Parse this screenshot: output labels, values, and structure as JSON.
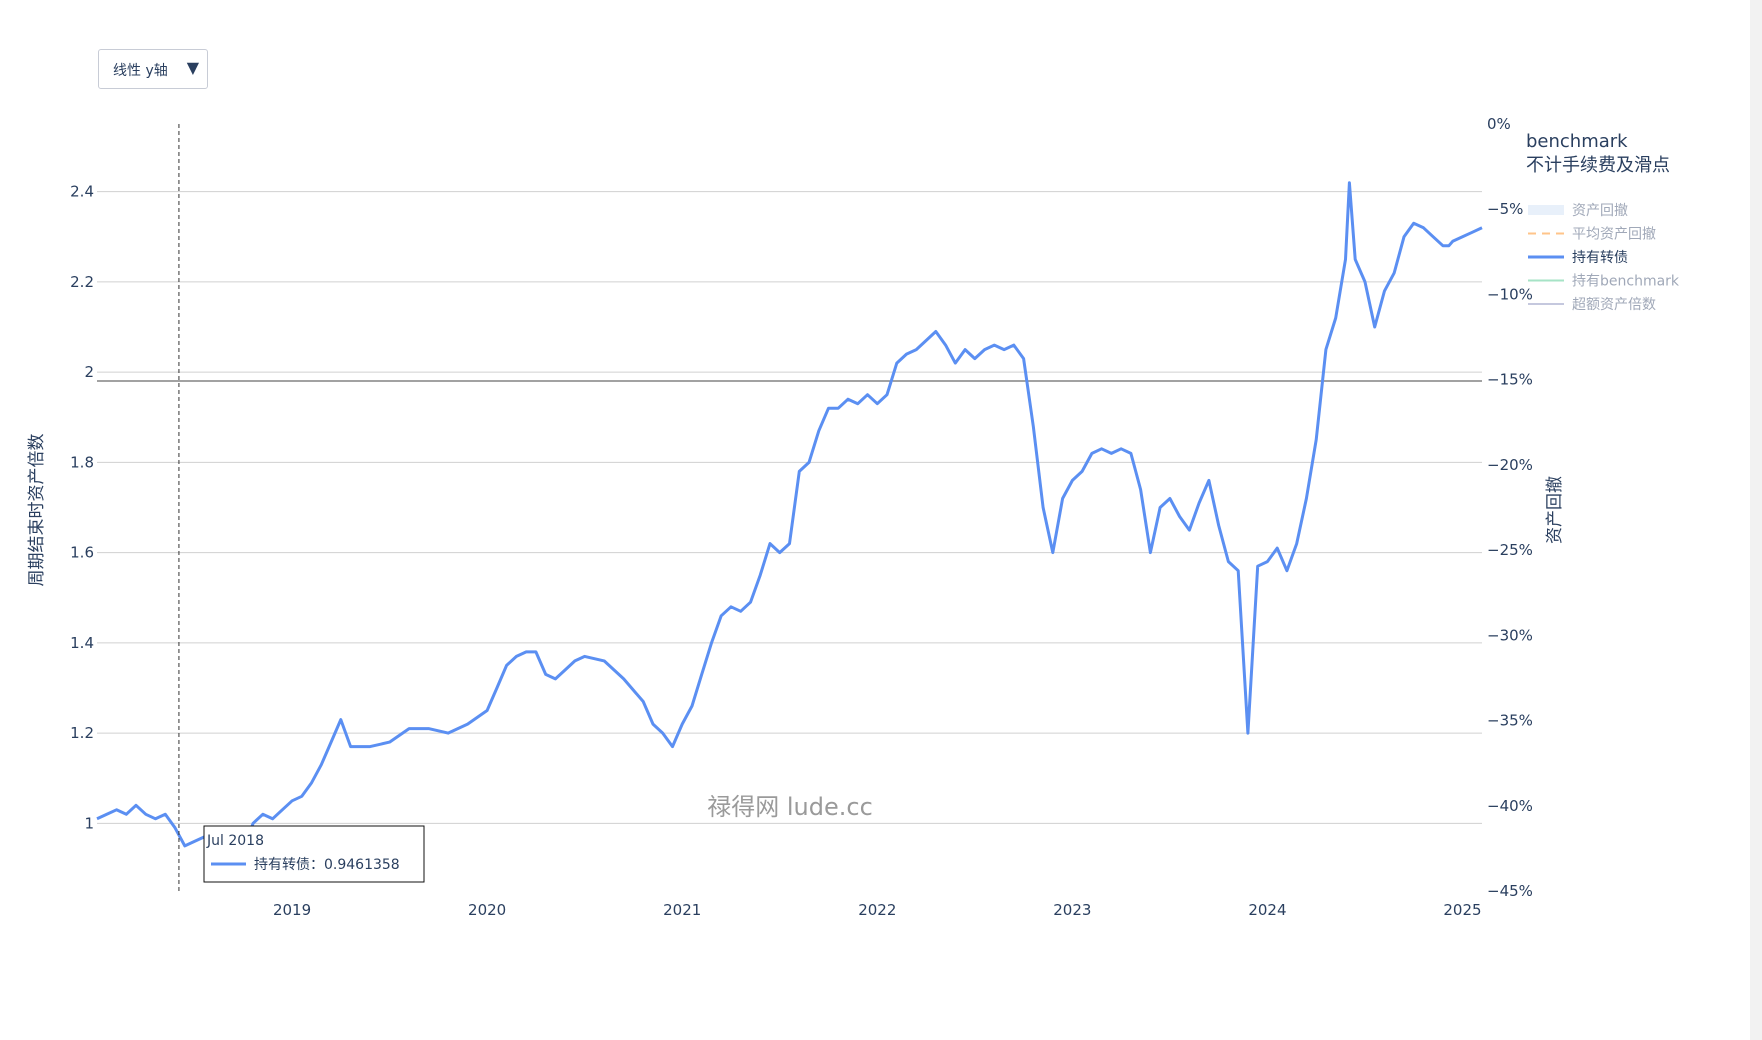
{
  "dropdown": {
    "label": "线性 y轴",
    "arrow": "▼",
    "icon": "dropdown-arrow-icon"
  },
  "watermark": "禄得网 lude.cc",
  "legend": {
    "title_line1": "benchmark",
    "title_line2": "不计手续费及滑点",
    "items": [
      {
        "label": "资产回撤",
        "color": "#e8f0fa",
        "style": "area",
        "active": false
      },
      {
        "label": "平均资产回撤",
        "color": "#ffc48a",
        "style": "dash",
        "active": false
      },
      {
        "label": "持有转债",
        "color": "#5b8ff2",
        "style": "line",
        "active": true
      },
      {
        "label": "持有benchmark",
        "color": "#a6e3c6",
        "style": "line",
        "active": false
      },
      {
        "label": "超额资产倍数",
        "color": "#c5c8de",
        "style": "line",
        "active": false
      }
    ]
  },
  "hover": {
    "date": "Jul 2018",
    "series": "持有转债",
    "value": "0.9461358"
  },
  "chart_data": {
    "type": "line",
    "title": "",
    "xlabel": "",
    "ylabel": "周期结束时资产倍数",
    "y2label": "资产回撤",
    "ylim": [
      0.85,
      2.55
    ],
    "y2lim": [
      -45,
      0
    ],
    "yticks": [
      1,
      1.2,
      1.4,
      1.6,
      1.8,
      2,
      2.2,
      2.4
    ],
    "ytick_labels": [
      "1",
      "1.2",
      "1.4",
      "1.6",
      "1.8",
      "2",
      "2.2",
      "2.4"
    ],
    "y2ticks": [
      0,
      -5,
      -10,
      -15,
      -20,
      -25,
      -30,
      -35,
      -40,
      -45
    ],
    "y2tick_labels": [
      "0%",
      "−5%",
      "−10%",
      "−15%",
      "−20%",
      "−25%",
      "−30%",
      "−35%",
      "−40%",
      "−45%"
    ],
    "xlim": [
      2018.0,
      2025.1
    ],
    "xticks": [
      2019,
      2020,
      2021,
      2022,
      2023,
      2024,
      2025
    ],
    "xtick_labels": [
      "2019",
      "2020",
      "2021",
      "2022",
      "2023",
      "2024",
      "2025"
    ],
    "hover_x": 2018.42,
    "series": [
      {
        "name": "持有转债",
        "color": "#5b8ff2",
        "x": [
          2018.0,
          2018.05,
          2018.1,
          2018.15,
          2018.2,
          2018.25,
          2018.3,
          2018.35,
          2018.4,
          2018.45,
          2018.5,
          2018.55,
          2018.6,
          2018.65,
          2018.7,
          2018.75,
          2018.8,
          2018.85,
          2018.9,
          2018.95,
          2019.0,
          2019.05,
          2019.1,
          2019.15,
          2019.2,
          2019.25,
          2019.3,
          2019.4,
          2019.5,
          2019.6,
          2019.7,
          2019.8,
          2019.9,
          2020.0,
          2020.05,
          2020.1,
          2020.15,
          2020.2,
          2020.25,
          2020.3,
          2020.35,
          2020.4,
          2020.45,
          2020.5,
          2020.6,
          2020.7,
          2020.8,
          2020.85,
          2020.9,
          2020.95,
          2021.0,
          2021.05,
          2021.1,
          2021.15,
          2021.2,
          2021.25,
          2021.3,
          2021.35,
          2021.4,
          2021.45,
          2021.5,
          2021.55,
          2021.6,
          2021.65,
          2021.7,
          2021.75,
          2021.8,
          2021.85,
          2021.9,
          2021.95,
          2022.0,
          2022.05,
          2022.1,
          2022.15,
          2022.2,
          2022.25,
          2022.3,
          2022.35,
          2022.4,
          2022.45,
          2022.5,
          2022.55,
          2022.6,
          2022.65,
          2022.7,
          2022.75,
          2022.8,
          2022.85,
          2022.9,
          2022.95,
          2023.0,
          2023.05,
          2023.1,
          2023.15,
          2023.2,
          2023.25,
          2023.3,
          2023.35,
          2023.4,
          2023.45,
          2023.5,
          2023.55,
          2023.6,
          2023.65,
          2023.7,
          2023.75,
          2023.8,
          2023.85,
          2023.9,
          2023.95,
          2024.0,
          2024.05,
          2024.1,
          2024.15,
          2024.2,
          2024.25,
          2024.3,
          2024.35,
          2024.4,
          2024.42,
          2024.45,
          2024.5,
          2024.55,
          2024.6,
          2024.65,
          2024.7,
          2024.75,
          2024.8,
          2024.85,
          2024.9,
          2024.93,
          2024.95,
          2025.0,
          2025.05,
          2025.1
        ],
        "y": [
          1.01,
          1.02,
          1.03,
          1.02,
          1.04,
          1.02,
          1.01,
          1.02,
          0.99,
          0.95,
          0.96,
          0.97,
          0.98,
          0.97,
          0.96,
          0.94,
          1.0,
          1.02,
          1.01,
          1.03,
          1.05,
          1.06,
          1.09,
          1.13,
          1.18,
          1.23,
          1.17,
          1.17,
          1.18,
          1.21,
          1.21,
          1.2,
          1.22,
          1.25,
          1.3,
          1.35,
          1.37,
          1.38,
          1.38,
          1.33,
          1.32,
          1.34,
          1.36,
          1.37,
          1.36,
          1.32,
          1.27,
          1.22,
          1.2,
          1.17,
          1.22,
          1.26,
          1.33,
          1.4,
          1.46,
          1.48,
          1.47,
          1.49,
          1.55,
          1.62,
          1.6,
          1.62,
          1.78,
          1.8,
          1.87,
          1.92,
          1.92,
          1.94,
          1.93,
          1.95,
          1.93,
          1.95,
          2.02,
          2.04,
          2.05,
          2.07,
          2.09,
          2.06,
          2.02,
          2.05,
          2.03,
          2.05,
          2.06,
          2.05,
          2.06,
          2.03,
          1.88,
          1.7,
          1.6,
          1.72,
          1.76,
          1.78,
          1.82,
          1.83,
          1.82,
          1.83,
          1.82,
          1.74,
          1.6,
          1.7,
          1.72,
          1.68,
          1.65,
          1.71,
          1.76,
          1.66,
          1.58,
          1.56,
          1.2,
          1.57,
          1.58,
          1.61,
          1.56,
          1.62,
          1.72,
          1.85,
          2.05,
          2.12,
          2.25,
          2.42,
          2.25,
          2.2,
          2.1,
          2.18,
          2.22,
          2.3,
          2.33,
          2.32,
          2.3,
          2.28,
          2.28,
          2.29,
          2.3,
          2.31,
          2.32
        ]
      }
    ]
  }
}
